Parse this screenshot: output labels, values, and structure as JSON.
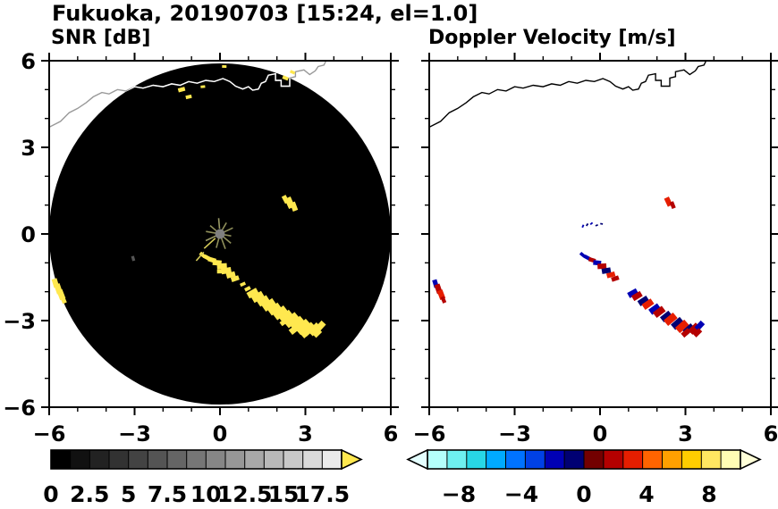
{
  "title": "Fukuoka, 20190703 [15:24, el=1.0]",
  "panels": {
    "snr": {
      "subtitle": "SNR [dB]"
    },
    "velocity": {
      "subtitle": "Doppler Velocity [m/s]"
    }
  },
  "coastline_xy": [
    [
      -6.0,
      3.7
    ],
    [
      -5.6,
      3.9
    ],
    [
      -5.3,
      4.2
    ],
    [
      -5.0,
      4.35
    ],
    [
      -4.7,
      4.55
    ],
    [
      -4.45,
      4.75
    ],
    [
      -4.15,
      4.9
    ],
    [
      -3.9,
      4.85
    ],
    [
      -3.6,
      5.0
    ],
    [
      -3.3,
      4.95
    ],
    [
      -3.0,
      5.1
    ],
    [
      -2.7,
      5.05
    ],
    [
      -2.35,
      5.15
    ],
    [
      -2.0,
      5.1
    ],
    [
      -1.7,
      5.2
    ],
    [
      -1.4,
      5.15
    ],
    [
      -1.1,
      5.28
    ],
    [
      -0.8,
      5.22
    ],
    [
      -0.5,
      5.32
    ],
    [
      -0.2,
      5.28
    ],
    [
      0.1,
      5.38
    ],
    [
      0.35,
      5.28
    ],
    [
      0.55,
      5.12
    ],
    [
      0.8,
      5.02
    ],
    [
      1.0,
      5.1
    ],
    [
      1.15,
      4.98
    ],
    [
      1.35,
      5.02
    ],
    [
      1.45,
      5.22
    ],
    [
      1.6,
      5.28
    ],
    [
      1.7,
      5.5
    ],
    [
      1.95,
      5.55
    ],
    [
      1.95,
      5.32
    ],
    [
      2.15,
      5.32
    ],
    [
      2.15,
      5.12
    ],
    [
      2.45,
      5.12
    ],
    [
      2.45,
      5.4
    ],
    [
      2.65,
      5.45
    ],
    [
      2.65,
      5.62
    ],
    [
      2.95,
      5.68
    ],
    [
      3.15,
      5.52
    ],
    [
      3.35,
      5.65
    ],
    [
      3.45,
      5.8
    ],
    [
      3.65,
      5.85
    ],
    [
      3.75,
      6.05
    ]
  ],
  "chart_data": [
    {
      "type": "scatter",
      "subtype": "radar_ppi",
      "title": "SNR [dB]",
      "xlim": [
        -6,
        6
      ],
      "ylim": [
        -6,
        6
      ],
      "ticks": {
        "values": [
          -6,
          -3,
          0,
          3,
          6
        ],
        "labels": [
          "−6",
          "−3",
          "0",
          "3",
          "6"
        ],
        "minor_step": 1
      },
      "background": {
        "disk_radius_km": 6,
        "disk_color": "#000000",
        "outside_color": "#ffffff"
      },
      "coastline_color": "#ffffff",
      "coastline_outside_color": "#999999",
      "echo_color": "#ffe84f",
      "echo_meaning": "yellow = SNR at/above top of scale",
      "echoes_xys": [
        [
          -1.35,
          5.0,
          0.7
        ],
        [
          -1.1,
          4.75,
          0.6
        ],
        [
          -0.6,
          5.1,
          0.45
        ],
        [
          0.15,
          5.8,
          0.45
        ],
        [
          2.3,
          5.4,
          0.6
        ],
        [
          2.55,
          5.6,
          0.5
        ],
        [
          2.3,
          1.2,
          0.8
        ],
        [
          2.45,
          1.08,
          1.1
        ],
        [
          2.6,
          0.95,
          0.9
        ],
        [
          -0.62,
          -0.72,
          0.6
        ],
        [
          -0.45,
          -0.82,
          0.7
        ],
        [
          -0.28,
          -0.9,
          0.8
        ],
        [
          -0.1,
          -1.0,
          0.9
        ],
        [
          0.07,
          -1.12,
          1.0
        ],
        [
          0.22,
          -1.27,
          1.0
        ],
        [
          0.02,
          -1.3,
          0.7
        ],
        [
          0.38,
          -1.42,
          0.9
        ],
        [
          0.53,
          -1.55,
          0.8
        ],
        [
          0.8,
          -1.74,
          0.55
        ],
        [
          0.97,
          -1.9,
          0.6
        ],
        [
          1.15,
          -2.05,
          1.1
        ],
        [
          1.33,
          -2.18,
          1.2
        ],
        [
          1.52,
          -2.32,
          1.15
        ],
        [
          1.72,
          -2.46,
          1.3
        ],
        [
          1.92,
          -2.6,
          1.25
        ],
        [
          2.12,
          -2.73,
          1.4
        ],
        [
          2.32,
          -2.86,
          1.3
        ],
        [
          2.52,
          -2.98,
          1.5
        ],
        [
          2.72,
          -3.1,
          1.4
        ],
        [
          2.92,
          -3.22,
          1.5
        ],
        [
          3.12,
          -3.3,
          1.35
        ],
        [
          3.32,
          -3.3,
          1.25
        ],
        [
          3.52,
          -3.2,
          1.05
        ],
        [
          3.42,
          -3.44,
          0.85
        ],
        [
          3.02,
          -3.44,
          0.95
        ],
        [
          2.62,
          -3.3,
          1.05
        ],
        [
          2.25,
          -3.05,
          0.8
        ],
        [
          -5.78,
          -1.7,
          0.9
        ],
        [
          -5.68,
          -1.9,
          1.0
        ],
        [
          -5.58,
          -2.1,
          1.0
        ],
        [
          -5.5,
          -2.28,
          0.75
        ]
      ],
      "extra_echoes": [
        [
          -3.05,
          -0.85,
          0.5,
          "#555555"
        ]
      ],
      "center": {
        "dot_color": "#808080",
        "dot_radius_km": 0.17,
        "spoke_note": "clutter spokes around radar site",
        "spokes": [
          [
            25,
            0.16,
            0.5,
            "#8f8f5a"
          ],
          [
            60,
            0.16,
            0.45,
            "#8f8f5a"
          ],
          [
            95,
            0.18,
            0.55,
            "#9a9a66"
          ],
          [
            140,
            0.16,
            0.45,
            "#8f8f5a"
          ],
          [
            170,
            0.16,
            0.5,
            "#8f8f5a"
          ],
          [
            205,
            0.16,
            0.55,
            "#9a9a66"
          ],
          [
            222,
            0.22,
            0.75,
            "#d7cd5a"
          ],
          [
            228,
            0.85,
            1.25,
            "#d7cd5a"
          ],
          [
            255,
            0.16,
            0.5,
            "#8f8f5a"
          ],
          [
            290,
            0.16,
            0.55,
            "#8f8f5a"
          ],
          [
            320,
            0.16,
            0.5,
            "#8f8f5a"
          ],
          [
            350,
            0.16,
            0.4,
            "#8f8f5a"
          ]
        ]
      },
      "colorbar": {
        "min": 0,
        "max": 18.75,
        "cell_step": 1.25,
        "tick_values": [
          0,
          2.5,
          5,
          7.5,
          10,
          12.5,
          15,
          17.5
        ],
        "tick_labels": [
          "0",
          "2.5",
          "5",
          "7.5",
          "10",
          "12.5",
          "15",
          "17.5"
        ],
        "colors_start": "#000000",
        "colors_end": "#ebebeb",
        "above_arrow_color": "#ffe84f"
      }
    },
    {
      "type": "scatter",
      "subtype": "radar_ppi",
      "title": "Doppler Velocity [m/s]",
      "xlim": [
        -6,
        6
      ],
      "ylim": [
        -6,
        6
      ],
      "ticks": {
        "values": [
          -6,
          -3,
          0,
          3,
          6
        ],
        "labels": [
          "−6",
          "−3",
          "0",
          "3",
          "6"
        ],
        "minor_step": 1
      },
      "background": {
        "outside_color": "#ffffff"
      },
      "coastline_color": "#000000",
      "echoes_xyvs": [
        [
          2.4,
          1.12,
          2.6,
          0.9
        ],
        [
          2.55,
          1.0,
          1.6,
          0.7
        ],
        [
          -0.6,
          0.27,
          -1.4,
          0.3
        ],
        [
          -0.45,
          0.32,
          -1.1,
          0.28
        ],
        [
          -0.3,
          0.36,
          -1.6,
          0.28
        ],
        [
          -0.12,
          0.3,
          -0.9,
          0.26
        ],
        [
          0.05,
          0.35,
          -1.2,
          0.26
        ],
        [
          -0.62,
          -0.72,
          -1.5,
          0.55
        ],
        [
          -0.45,
          -0.82,
          -1.9,
          0.65
        ],
        [
          -0.28,
          -0.9,
          1.4,
          0.7
        ],
        [
          -0.1,
          -1.0,
          -1.7,
          0.8
        ],
        [
          0.07,
          -1.12,
          2.1,
          0.9
        ],
        [
          0.22,
          -1.27,
          -1.1,
          0.9
        ],
        [
          0.38,
          -1.42,
          2.7,
          0.85
        ],
        [
          0.53,
          -1.55,
          1.5,
          0.75
        ],
        [
          1.15,
          -2.05,
          -1.4,
          1.0
        ],
        [
          1.3,
          -2.15,
          2.4,
          1.0
        ],
        [
          1.52,
          -2.32,
          -0.9,
          1.05
        ],
        [
          1.68,
          -2.43,
          2.9,
          1.1
        ],
        [
          1.92,
          -2.6,
          -1.3,
          1.1
        ],
        [
          2.08,
          -2.7,
          2.1,
          1.15
        ],
        [
          2.32,
          -2.86,
          -0.7,
          1.1
        ],
        [
          2.48,
          -2.95,
          2.5,
          1.25
        ],
        [
          2.72,
          -3.1,
          -1.1,
          1.2
        ],
        [
          2.88,
          -3.2,
          3.1,
          1.25
        ],
        [
          3.12,
          -3.3,
          -0.8,
          1.1
        ],
        [
          3.3,
          -3.28,
          1.9,
          1.1
        ],
        [
          3.5,
          -3.18,
          -1.4,
          0.95
        ],
        [
          3.42,
          -3.42,
          2.3,
          0.85
        ],
        [
          3.02,
          -3.42,
          1.5,
          0.9
        ],
        [
          -5.78,
          -1.72,
          -1.5,
          0.8
        ],
        [
          -5.68,
          -1.9,
          2.1,
          0.95
        ],
        [
          -5.58,
          -2.1,
          2.7,
          0.95
        ],
        [
          -5.5,
          -2.28,
          1.3,
          0.65
        ]
      ],
      "colorbar": {
        "min": -10,
        "max": 10,
        "cell_step": 1.25,
        "tick_values": [
          -8,
          -4,
          0,
          4,
          8
        ],
        "tick_labels": [
          "−8",
          "−4",
          "0",
          "4",
          "8"
        ],
        "colors": [
          "#b4fffb",
          "#6ef0f0",
          "#28d7e6",
          "#00aaff",
          "#0073ff",
          "#0041e6",
          "#0000b4",
          "#000073",
          "#730000",
          "#b40000",
          "#e61e00",
          "#ff6400",
          "#ffa000",
          "#ffcd00",
          "#ffe761",
          "#fffdb4"
        ],
        "below_arrow_color": "#e4ffff",
        "above_arrow_color": "#ffffd8"
      }
    }
  ]
}
